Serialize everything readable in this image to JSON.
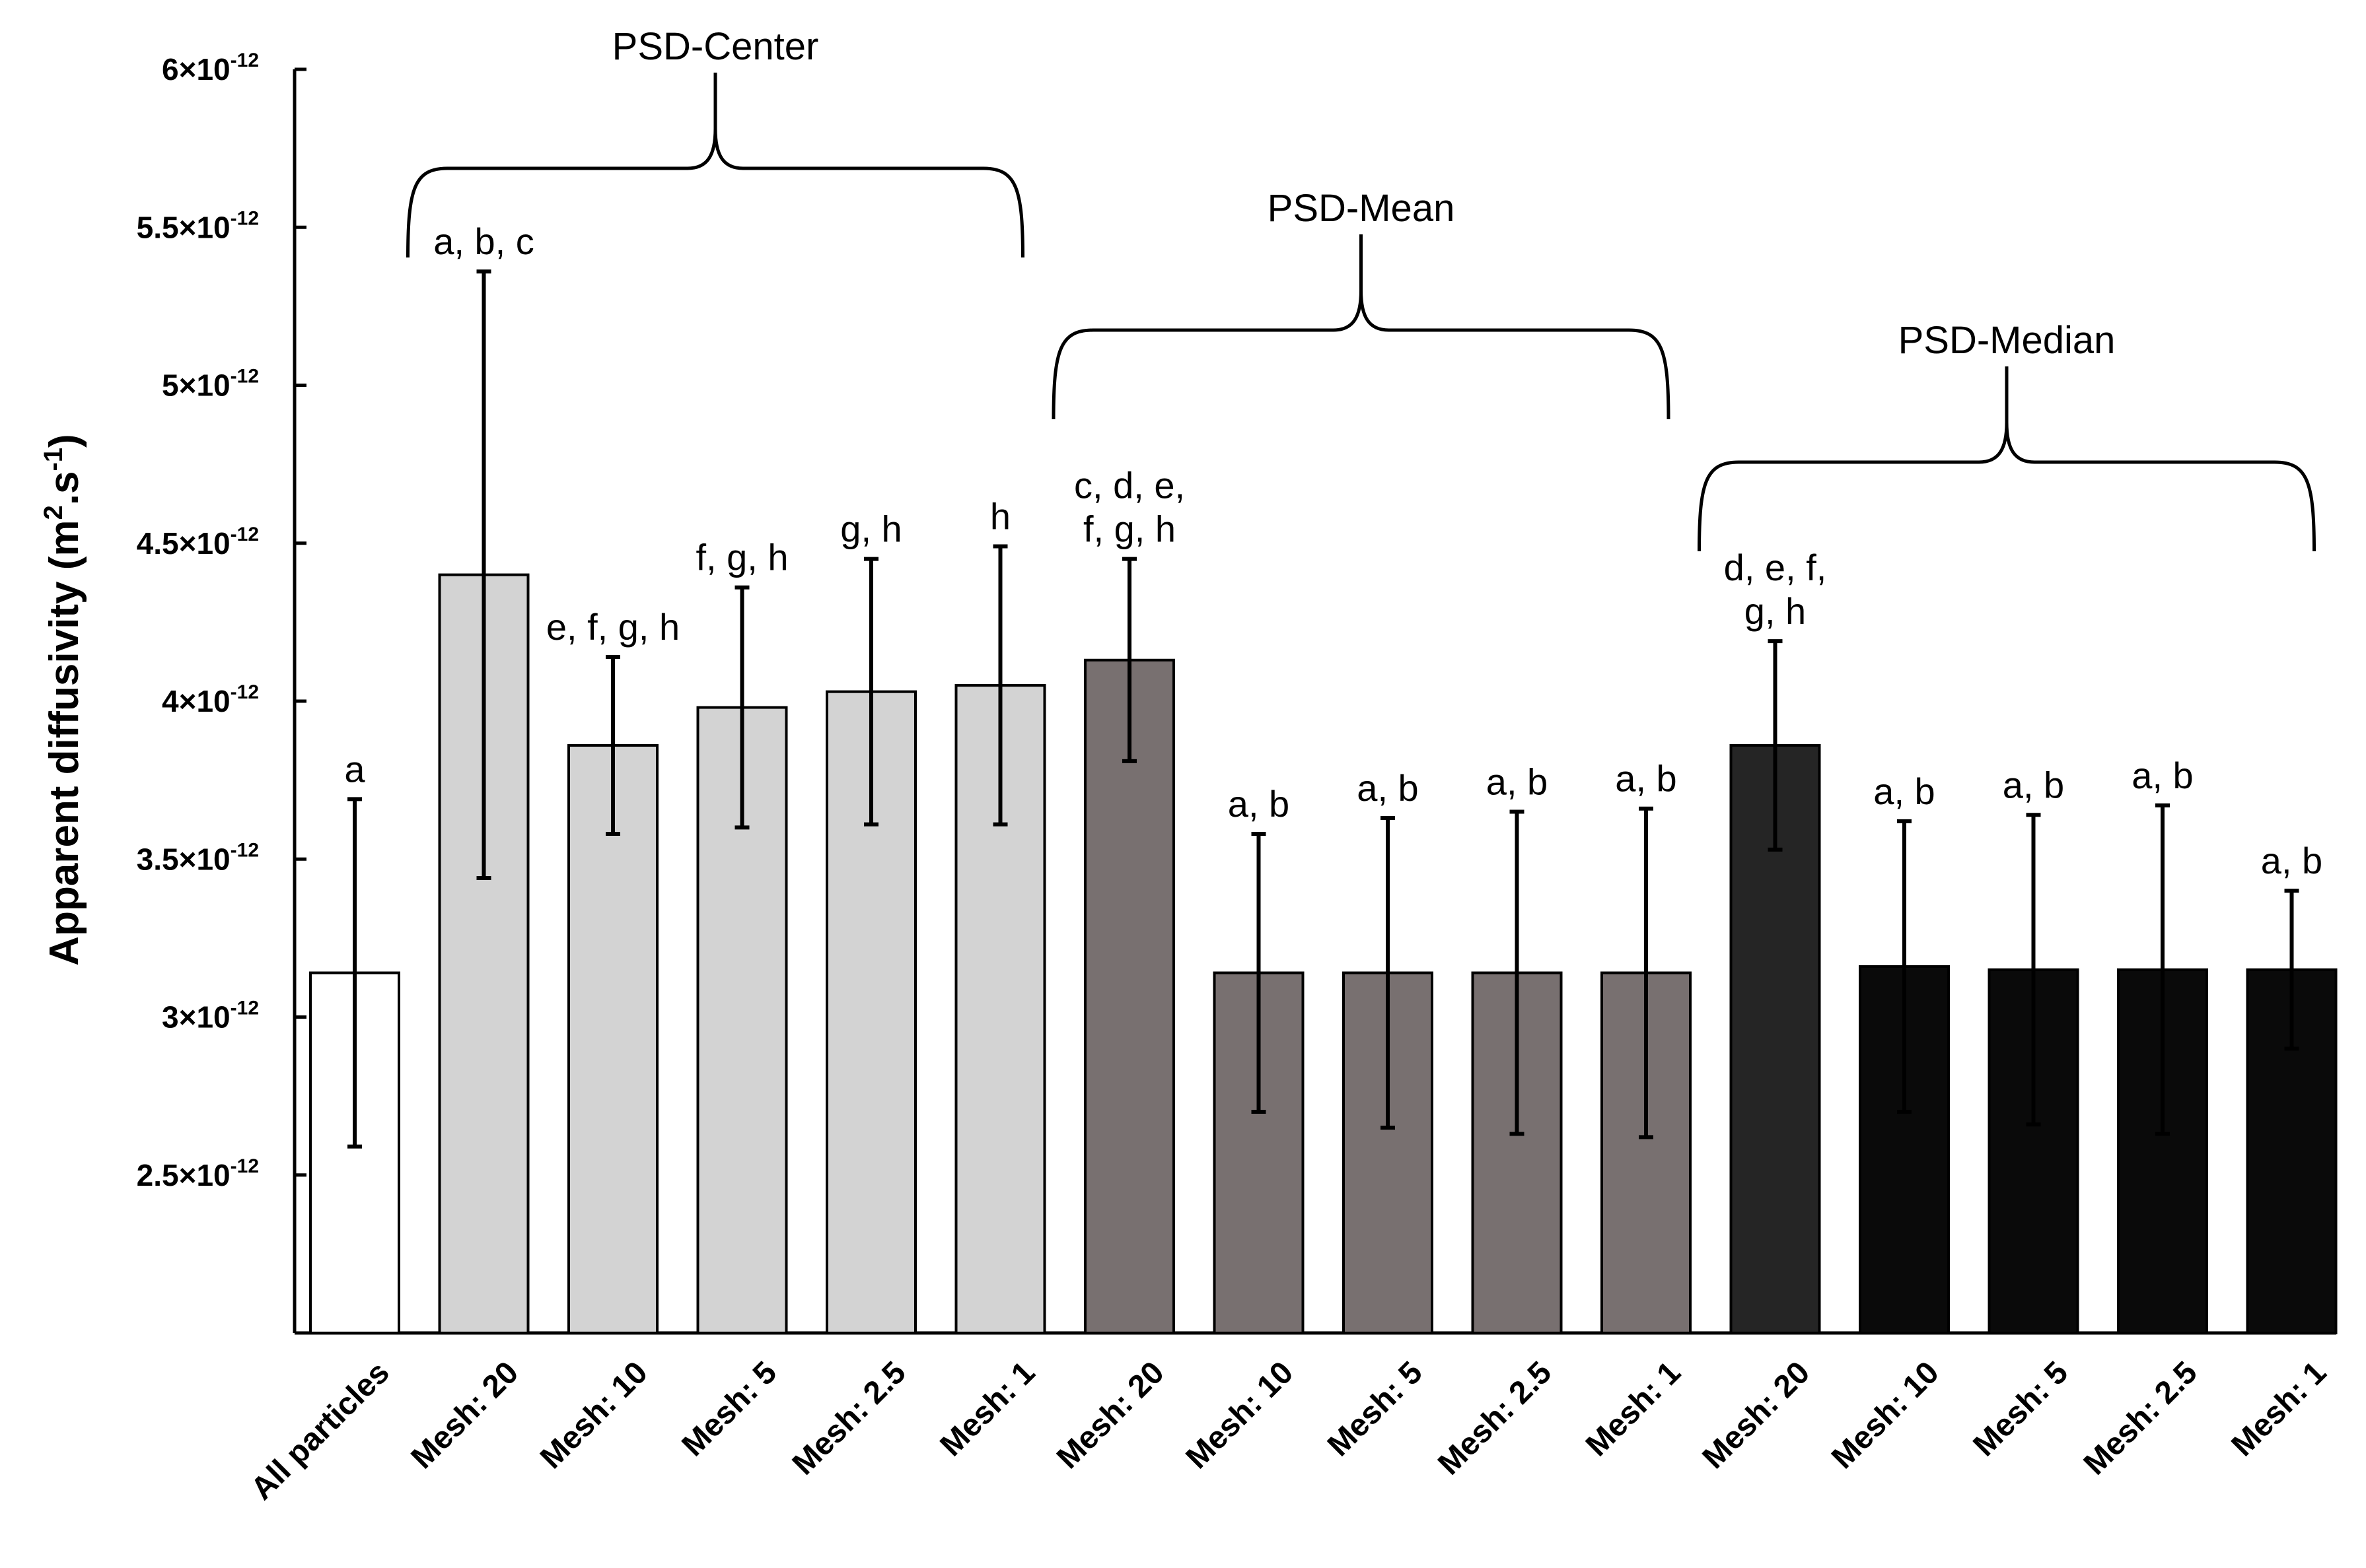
{
  "chart_data": {
    "type": "bar",
    "title": "",
    "xlabel": "",
    "ylabel": {
      "main": "Apparent diffusivity (m",
      "sup1": "2",
      "mid": ".s",
      "sup2": "-1",
      "end": ")"
    },
    "ylim": [
      2e-12,
      6e-12
    ],
    "yticks": [
      {
        "value": 6e-12,
        "base": "6×10",
        "exp": "-12"
      },
      {
        "value": 5.5e-12,
        "base": "5.5×10",
        "exp": "-12"
      },
      {
        "value": 5e-12,
        "base": "5×10",
        "exp": "-12"
      },
      {
        "value": 4.5e-12,
        "base": "4.5×10",
        "exp": "-12"
      },
      {
        "value": 4e-12,
        "base": "4×10",
        "exp": "-12"
      },
      {
        "value": 3.5e-12,
        "base": "3.5×10",
        "exp": "-12"
      },
      {
        "value": 3e-12,
        "base": "3×10",
        "exp": "-12"
      },
      {
        "value": 2.5e-12,
        "base": "2.5×10",
        "exp": "-12"
      }
    ],
    "categories": [
      "All particles",
      "Mesh: 20",
      "Mesh: 10",
      "Mesh: 5",
      "Mesh: 2.5",
      "Mesh: 1",
      "Mesh: 20",
      "Mesh: 10",
      "Mesh: 5",
      "Mesh: 2.5",
      "Mesh: 1",
      "Mesh: 20",
      "Mesh: 10",
      "Mesh: 5",
      "Mesh: 2.5",
      "Mesh: 1"
    ],
    "values": [
      3.14e-12,
      4.4e-12,
      3.86e-12,
      3.98e-12,
      4.03e-12,
      4.05e-12,
      4.13e-12,
      3.14e-12,
      3.14e-12,
      3.14e-12,
      3.14e-12,
      3.86e-12,
      3.16e-12,
      3.15e-12,
      3.15e-12,
      3.15e-12
    ],
    "errors": [
      5.5e-13,
      9.6e-13,
      2.8e-13,
      3.8e-13,
      4.2e-13,
      4.4e-13,
      3.2e-13,
      4.4e-13,
      4.9e-13,
      5.1e-13,
      5.2e-13,
      3.3e-13,
      4.6e-13,
      4.9e-13,
      5.2e-13,
      2.5e-13
    ],
    "significance": [
      [
        "a"
      ],
      [
        "a, b, c"
      ],
      [
        "e, f, g, h"
      ],
      [
        "f, g, h"
      ],
      [
        "g, h"
      ],
      [
        "h"
      ],
      [
        "c, d, e,",
        "f, g, h"
      ],
      [
        "a, b"
      ],
      [
        "a, b"
      ],
      [
        "a, b"
      ],
      [
        "a, b"
      ],
      [
        "d, e, f,",
        "g, h"
      ],
      [
        "a, b"
      ],
      [
        "a, b"
      ],
      [
        "a, b"
      ],
      [
        "a, b"
      ]
    ],
    "groups": [
      {
        "name": "PSD-Center",
        "start": 1,
        "end": 5
      },
      {
        "name": "PSD-Mean",
        "start": 6,
        "end": 10
      },
      {
        "name": "PSD-Median",
        "start": 11,
        "end": 15
      }
    ],
    "colors": {
      "all": "#ffffff",
      "center": "#d3d3d3",
      "mean": "#787070",
      "median_first": "#252525",
      "median": "#0a0a0a",
      "stroke": "#000000"
    },
    "bar_colors": [
      "all",
      "center",
      "center",
      "center",
      "center",
      "center",
      "mean",
      "mean",
      "mean",
      "mean",
      "mean",
      "median_first",
      "median",
      "median",
      "median",
      "median"
    ]
  }
}
